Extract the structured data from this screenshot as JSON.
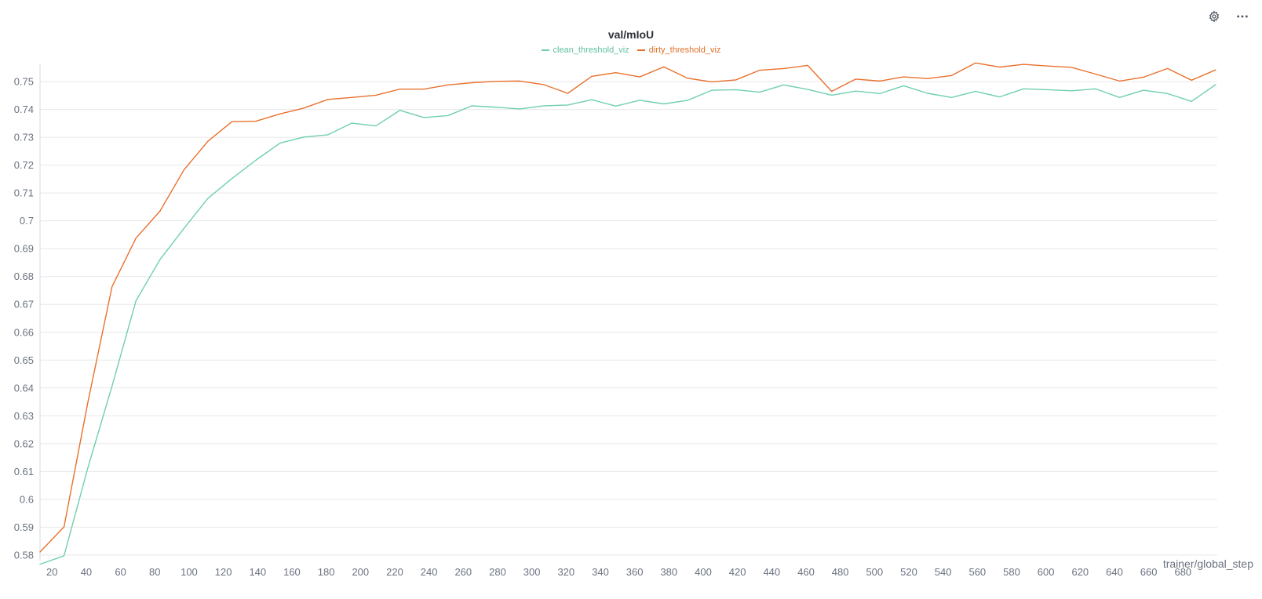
{
  "toolbar": {
    "settings_icon": "gear-icon",
    "more_icon": "ellipsis-icon"
  },
  "chart_data": {
    "type": "line",
    "title": "val/mIoU",
    "xlabel": "trainer/global_step",
    "ylabel": "",
    "xlim": [
      13,
      700
    ],
    "ylim": [
      0.578,
      0.7565
    ],
    "grid": true,
    "legend_position": "top-center",
    "x_ticks": [
      "20",
      "40",
      "60",
      "80",
      "100",
      "120",
      "140",
      "160",
      "180",
      "200",
      "220",
      "240",
      "260",
      "280",
      "300",
      "320",
      "340",
      "360",
      "380",
      "400",
      "420",
      "440",
      "460",
      "480",
      "500",
      "520",
      "540",
      "560",
      "580",
      "600",
      "620",
      "640",
      "660",
      "680"
    ],
    "y_ticks": [
      "0.58",
      "0.59",
      "0.6",
      "0.61",
      "0.62",
      "0.63",
      "0.64",
      "0.65",
      "0.66",
      "0.67",
      "0.68",
      "0.69",
      "0.7",
      "0.71",
      "0.72",
      "0.73",
      "0.74",
      "0.75"
    ],
    "x": [
      13,
      27,
      41,
      55,
      69,
      83,
      97,
      111,
      125,
      139,
      153,
      167,
      181,
      195,
      209,
      223,
      237,
      251,
      265,
      279,
      293,
      307,
      321,
      335,
      349,
      363,
      377,
      391,
      405,
      419,
      433,
      447,
      461,
      475,
      489,
      503,
      517,
      531,
      545,
      559,
      573,
      587,
      601,
      615,
      629,
      643,
      657,
      671,
      685,
      699
    ],
    "series": [
      {
        "name": "clean_threshold_viz",
        "color": "#6fcfae",
        "values": [
          0.5767,
          0.5797,
          0.6115,
          0.6406,
          0.6713,
          0.6861,
          0.6973,
          0.7081,
          0.7152,
          0.7218,
          0.7279,
          0.7301,
          0.7309,
          0.7351,
          0.7341,
          0.7397,
          0.7371,
          0.7378,
          0.7413,
          0.7408,
          0.7402,
          0.7413,
          0.7416,
          0.7435,
          0.7412,
          0.7433,
          0.742,
          0.7433,
          0.7469,
          0.7471,
          0.7462,
          0.7488,
          0.7472,
          0.7451,
          0.7466,
          0.7457,
          0.7485,
          0.7458,
          0.7443,
          0.7465,
          0.7445,
          0.7474,
          0.7471,
          0.7467,
          0.7474,
          0.7443,
          0.7469,
          0.7457,
          0.7429,
          0.7489
        ]
      },
      {
        "name": "dirty_threshold_viz",
        "color": "#e9712e",
        "values": [
          0.5811,
          0.5901,
          0.6351,
          0.6763,
          0.6938,
          0.7035,
          0.7183,
          0.7286,
          0.7356,
          0.7358,
          0.7384,
          0.7405,
          0.7436,
          0.7443,
          0.7451,
          0.7473,
          0.7473,
          0.7488,
          0.7496,
          0.7501,
          0.7502,
          0.7489,
          0.7458,
          0.7519,
          0.7532,
          0.7517,
          0.7553,
          0.7512,
          0.7499,
          0.7506,
          0.7541,
          0.7547,
          0.7558,
          0.7465,
          0.7509,
          0.7502,
          0.7517,
          0.7511,
          0.7522,
          0.7567,
          0.7552,
          0.7562,
          0.7556,
          0.7551,
          0.7527,
          0.7502,
          0.7516,
          0.7547,
          0.7505,
          0.7542
        ]
      }
    ]
  }
}
